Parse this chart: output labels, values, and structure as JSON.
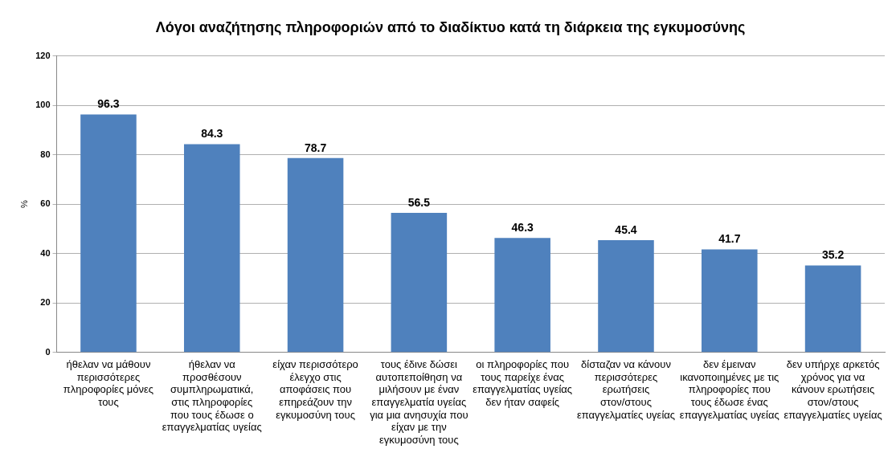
{
  "chart_data": {
    "type": "bar",
    "title": "Λόγοι αναζήτησης πληροφοριών από το διαδίκτυο κατά τη διάρκεια της εγκυμοσύνης",
    "ylabel": "%",
    "categories": [
      "ήθελαν να μάθουν περισσότερες πληροφορίες μόνες τους",
      "ήθελαν να προσθέσουν συμπληρωματικά, στις πληροφορίες που τους έδωσε ο επαγγελματίας υγείας",
      "είχαν περισσότερο έλεγχο στις αποφάσεις που επηρεάζουν την εγκυμοσύνη τους",
      "τους έδινε δώσει αυτοπεποίθηση να μιλήσουν με έναν επαγγελματία υγείας για μια ανησυχία που είχαν με την εγκυμοσύνη τους",
      "οι πληροφορίες που τους παρείχε ένας επαγγελματίας υγείας δεν ήταν σαφείς",
      "δίσταζαν να κάνουν περισσότερες ερωτήσεις στον/στους επαγγελματίες υγείας",
      "δεν έμειναν ικανοποιημένες με τις πληροφορίες που τους έδωσε ένας επαγγελματίας υγείας",
      "δεν υπήρχε αρκετός χρόνος για να κάνουν ερωτήσεις στον/στους επαγγελματίες υγείας"
    ],
    "values": [
      96.3,
      84.3,
      78.7,
      56.5,
      46.3,
      45.4,
      41.7,
      35.2
    ],
    "color": "#4f81bd",
    "ylim": [
      0,
      120
    ],
    "yticks": [
      0,
      20,
      40,
      60,
      80,
      100,
      120
    ],
    "grid": "y",
    "data_labels": true,
    "legend": false
  }
}
